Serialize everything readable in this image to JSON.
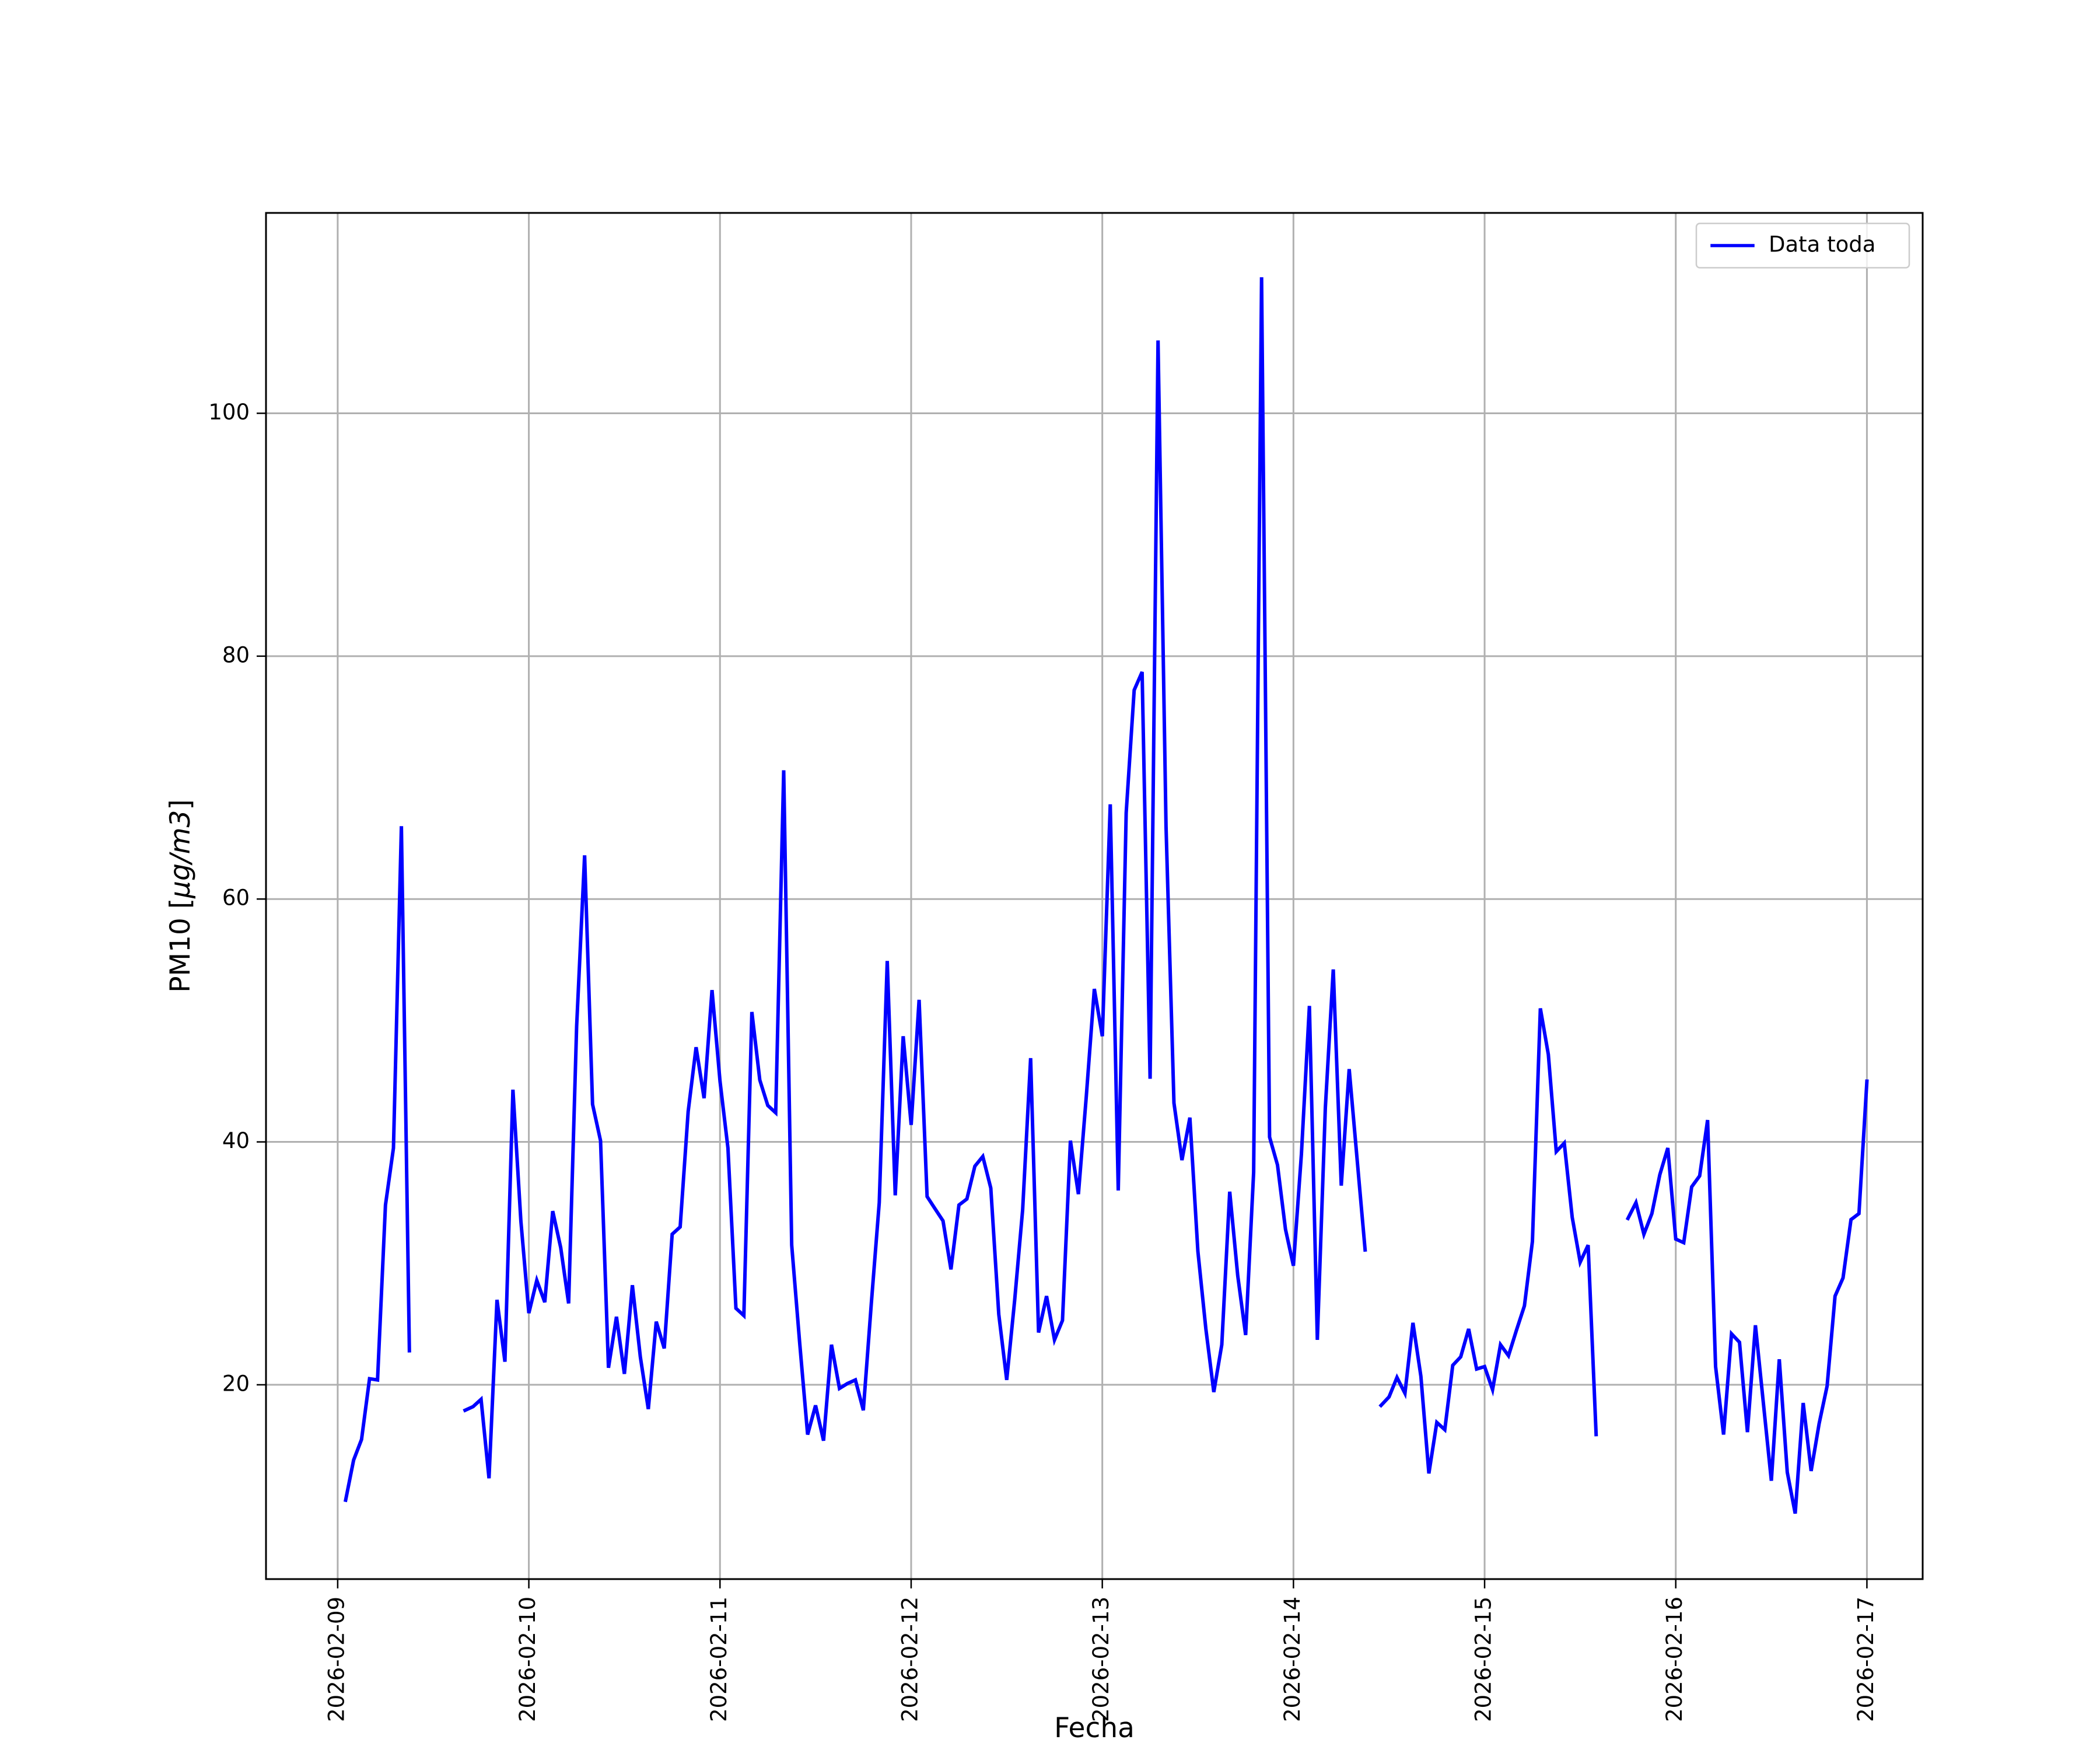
{
  "chart_data": {
    "type": "line",
    "xlabel": "Fecha",
    "ylabel_main": "PM10 [",
    "ylabel_unit": "μg/m3",
    "ylabel_close": "]",
    "xlim": [
      "2026-02-08T15:00",
      "2026-02-17T07:00"
    ],
    "ylim": [
      4,
      116.5
    ],
    "x_ticks": [
      "2026-02-09",
      "2026-02-10",
      "2026-02-11",
      "2026-02-12",
      "2026-02-13",
      "2026-02-14",
      "2026-02-15",
      "2026-02-16",
      "2026-02-17"
    ],
    "y_ticks": [
      20,
      40,
      60,
      80,
      100
    ],
    "y_tick_labels": [
      "20",
      "40",
      "60",
      "80",
      "100"
    ],
    "grid": true,
    "legend_position": "top-right",
    "color": "#0000ff",
    "series": [
      {
        "name": "Data toda",
        "segments": [
          [
            [
              "2026-02-09T01:00",
              10.5
            ],
            [
              "2026-02-09T02:00",
              13.8
            ],
            [
              "2026-02-09T03:00",
              15.5
            ],
            [
              "2026-02-09T04:00",
              20.5
            ],
            [
              "2026-02-09T05:00",
              20.4
            ],
            [
              "2026-02-09T06:00",
              34.8
            ],
            [
              "2026-02-09T07:00",
              39.5
            ],
            [
              "2026-02-09T08:00",
              66.0
            ],
            [
              "2026-02-09T09:00",
              22.8
            ]
          ],
          [
            [
              "2026-02-09T16:00",
              17.9
            ],
            [
              "2026-02-09T17:00",
              18.2
            ],
            [
              "2026-02-09T18:00",
              18.8
            ],
            [
              "2026-02-09T19:00",
              12.3
            ],
            [
              "2026-02-09T20:00",
              27.0
            ],
            [
              "2026-02-09T21:00",
              21.9
            ],
            [
              "2026-02-09T22:00",
              44.3
            ],
            [
              "2026-02-09T23:00",
              33.5
            ],
            [
              "2026-02-10T00:00",
              25.9
            ],
            [
              "2026-02-10T01:00",
              28.6
            ],
            [
              "2026-02-10T02:00",
              26.8
            ],
            [
              "2026-02-10T03:00",
              34.3
            ],
            [
              "2026-02-10T04:00",
              31.3
            ],
            [
              "2026-02-10T05:00",
              26.7
            ],
            [
              "2026-02-10T06:00",
              49.5
            ],
            [
              "2026-02-10T07:00",
              63.6
            ],
            [
              "2026-02-10T08:00",
              43.1
            ],
            [
              "2026-02-10T09:00",
              40.1
            ],
            [
              "2026-02-10T10:00",
              21.4
            ],
            [
              "2026-02-10T11:00",
              25.6
            ],
            [
              "2026-02-10T12:00",
              20.9
            ],
            [
              "2026-02-10T13:00",
              28.2
            ],
            [
              "2026-02-10T14:00",
              22.3
            ],
            [
              "2026-02-10T15:00",
              18.0
            ],
            [
              "2026-02-10T16:00",
              25.2
            ],
            [
              "2026-02-10T17:00",
              23.0
            ],
            [
              "2026-02-10T18:00",
              32.4
            ],
            [
              "2026-02-10T19:00",
              33.0
            ],
            [
              "2026-02-10T20:00",
              42.5
            ],
            [
              "2026-02-10T21:00",
              47.8
            ],
            [
              "2026-02-10T22:00",
              43.6
            ],
            [
              "2026-02-10T23:00",
              52.5
            ],
            [
              "2026-02-11T00:00",
              45.0
            ],
            [
              "2026-02-11T01:00",
              39.5
            ],
            [
              "2026-02-11T02:00",
              26.3
            ],
            [
              "2026-02-11T03:00",
              25.7
            ],
            [
              "2026-02-11T04:00",
              50.7
            ],
            [
              "2026-02-11T05:00",
              45.1
            ],
            [
              "2026-02-11T06:00",
              43.0
            ],
            [
              "2026-02-11T07:00",
              42.4
            ],
            [
              "2026-02-11T08:00",
              70.6
            ],
            [
              "2026-02-11T09:00",
              31.5
            ],
            [
              "2026-02-11T10:00",
              23.5
            ],
            [
              "2026-02-11T11:00",
              15.9
            ],
            [
              "2026-02-11T12:00",
              18.3
            ],
            [
              "2026-02-11T13:00",
              15.4
            ],
            [
              "2026-02-11T14:00",
              23.3
            ],
            [
              "2026-02-11T15:00",
              19.7
            ],
            [
              "2026-02-11T16:00",
              20.1
            ],
            [
              "2026-02-11T17:00",
              20.4
            ],
            [
              "2026-02-11T18:00",
              17.9
            ],
            [
              "2026-02-11T19:00",
              26.7
            ],
            [
              "2026-02-11T20:00",
              35.0
            ],
            [
              "2026-02-11T21:00",
              54.9
            ],
            [
              "2026-02-11T22:00",
              35.6
            ],
            [
              "2026-02-11T23:00",
              48.7
            ],
            [
              "2026-02-12T00:00",
              41.4
            ],
            [
              "2026-02-12T01:00",
              51.7
            ],
            [
              "2026-02-12T02:00",
              35.5
            ],
            [
              "2026-02-12T03:00",
              34.5
            ],
            [
              "2026-02-12T04:00",
              33.5
            ],
            [
              "2026-02-12T05:00",
              29.5
            ],
            [
              "2026-02-12T06:00",
              34.8
            ],
            [
              "2026-02-12T07:00",
              35.3
            ],
            [
              "2026-02-12T08:00",
              38.0
            ],
            [
              "2026-02-12T09:00",
              38.8
            ],
            [
              "2026-02-12T10:00",
              36.2
            ],
            [
              "2026-02-12T11:00",
              25.8
            ],
            [
              "2026-02-12T12:00",
              20.4
            ],
            [
              "2026-02-12T13:00",
              27.0
            ],
            [
              "2026-02-12T14:00",
              34.4
            ],
            [
              "2026-02-12T15:00",
              46.9
            ],
            [
              "2026-02-12T16:00",
              24.3
            ],
            [
              "2026-02-12T17:00",
              27.3
            ],
            [
              "2026-02-12T18:00",
              23.7
            ],
            [
              "2026-02-12T19:00",
              25.3
            ],
            [
              "2026-02-12T20:00",
              40.1
            ],
            [
              "2026-02-12T21:00",
              35.7
            ],
            [
              "2026-02-12T22:00",
              43.8
            ],
            [
              "2026-02-12T23:00",
              52.6
            ],
            [
              "2026-02-13T00:00",
              48.7
            ],
            [
              "2026-02-13T01:00",
              67.8
            ],
            [
              "2026-02-13T02:00",
              36.0
            ],
            [
              "2026-02-13T03:00",
              67.1
            ],
            [
              "2026-02-13T04:00",
              77.2
            ],
            [
              "2026-02-13T05:00",
              78.7
            ],
            [
              "2026-02-13T06:00",
              45.2
            ],
            [
              "2026-02-13T07:00",
              106.0
            ],
            [
              "2026-02-13T08:00",
              66.0
            ],
            [
              "2026-02-13T09:00",
              43.2
            ],
            [
              "2026-02-13T10:00",
              38.5
            ],
            [
              "2026-02-13T11:00",
              42.0
            ],
            [
              "2026-02-13T12:00",
              31.0
            ],
            [
              "2026-02-13T13:00",
              24.6
            ],
            [
              "2026-02-13T14:00",
              19.4
            ],
            [
              "2026-02-13T15:00",
              23.3
            ],
            [
              "2026-02-13T16:00",
              35.9
            ],
            [
              "2026-02-13T17:00",
              29.0
            ],
            [
              "2026-02-13T18:00",
              24.1
            ],
            [
              "2026-02-13T19:00",
              37.5
            ],
            [
              "2026-02-13T20:00",
              111.2
            ],
            [
              "2026-02-13T21:00",
              40.4
            ],
            [
              "2026-02-13T22:00",
              38.1
            ],
            [
              "2026-02-13T23:00",
              32.8
            ],
            [
              "2026-02-14T00:00",
              29.8
            ],
            [
              "2026-02-14T01:00",
              39.0
            ],
            [
              "2026-02-14T02:00",
              51.2
            ],
            [
              "2026-02-14T03:00",
              23.7
            ],
            [
              "2026-02-14T04:00",
              42.8
            ],
            [
              "2026-02-14T05:00",
              54.2
            ],
            [
              "2026-02-14T06:00",
              36.4
            ],
            [
              "2026-02-14T07:00",
              46.0
            ],
            [
              "2026-02-14T08:00",
              38.5
            ],
            [
              "2026-02-14T09:00",
              31.1
            ]
          ],
          [
            [
              "2026-02-14T11:00",
              18.3
            ],
            [
              "2026-02-14T12:00",
              19.0
            ],
            [
              "2026-02-14T13:00",
              20.6
            ],
            [
              "2026-02-14T14:00",
              19.3
            ],
            [
              "2026-02-14T15:00",
              25.1
            ],
            [
              "2026-02-14T16:00",
              20.7
            ],
            [
              "2026-02-14T17:00",
              12.7
            ],
            [
              "2026-02-14T18:00",
              16.9
            ],
            [
              "2026-02-14T19:00",
              16.3
            ],
            [
              "2026-02-14T20:00",
              21.6
            ],
            [
              "2026-02-14T21:00",
              22.3
            ],
            [
              "2026-02-14T22:00",
              24.6
            ],
            [
              "2026-02-14T23:00",
              21.3
            ],
            [
              "2026-02-15T00:00",
              21.5
            ],
            [
              "2026-02-15T01:00",
              19.6
            ],
            [
              "2026-02-15T02:00",
              23.3
            ],
            [
              "2026-02-15T03:00",
              22.4
            ],
            [
              "2026-02-15T04:00",
              24.5
            ],
            [
              "2026-02-15T05:00",
              26.5
            ],
            [
              "2026-02-15T06:00",
              31.8
            ],
            [
              "2026-02-15T07:00",
              51.0
            ],
            [
              "2026-02-15T08:00",
              47.2
            ],
            [
              "2026-02-15T09:00",
              39.2
            ],
            [
              "2026-02-15T10:00",
              39.9
            ],
            [
              "2026-02-15T11:00",
              33.8
            ],
            [
              "2026-02-15T12:00",
              30.1
            ],
            [
              "2026-02-15T13:00",
              31.5
            ],
            [
              "2026-02-15T14:00",
              15.9
            ]
          ],
          [
            [
              "2026-02-15T18:00",
              33.7
            ],
            [
              "2026-02-15T19:00",
              35.0
            ],
            [
              "2026-02-15T20:00",
              32.4
            ],
            [
              "2026-02-15T21:00",
              34.1
            ],
            [
              "2026-02-15T22:00",
              37.3
            ],
            [
              "2026-02-15T23:00",
              39.5
            ],
            [
              "2026-02-16T00:00",
              32.0
            ],
            [
              "2026-02-16T01:00",
              31.7
            ],
            [
              "2026-02-16T02:00",
              36.3
            ],
            [
              "2026-02-16T03:00",
              37.2
            ],
            [
              "2026-02-16T04:00",
              41.8
            ],
            [
              "2026-02-16T05:00",
              21.5
            ],
            [
              "2026-02-16T06:00",
              15.9
            ],
            [
              "2026-02-16T07:00",
              24.2
            ],
            [
              "2026-02-16T08:00",
              23.5
            ],
            [
              "2026-02-16T09:00",
              16.1
            ],
            [
              "2026-02-16T10:00",
              24.9
            ],
            [
              "2026-02-16T11:00",
              18.5
            ],
            [
              "2026-02-16T12:00",
              12.1
            ],
            [
              "2026-02-16T13:00",
              22.1
            ],
            [
              "2026-02-16T14:00",
              12.8
            ],
            [
              "2026-02-16T15:00",
              9.4
            ],
            [
              "2026-02-16T16:00",
              18.5
            ],
            [
              "2026-02-16T17:00",
              12.9
            ],
            [
              "2026-02-16T18:00",
              16.8
            ],
            [
              "2026-02-16T19:00",
              19.9
            ],
            [
              "2026-02-16T20:00",
              27.3
            ],
            [
              "2026-02-16T21:00",
              28.8
            ],
            [
              "2026-02-16T22:00",
              33.6
            ],
            [
              "2026-02-16T23:00",
              34.1
            ],
            [
              "2026-02-17T00:00",
              45.0
            ]
          ]
        ]
      }
    ]
  }
}
